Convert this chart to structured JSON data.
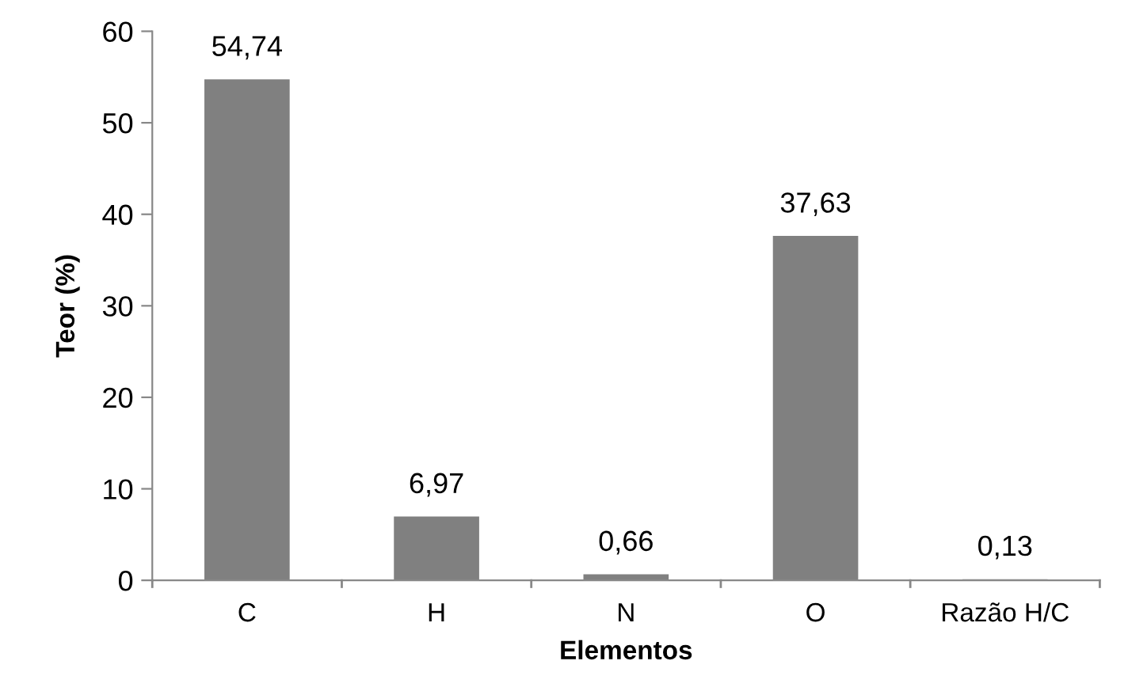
{
  "chart_data": {
    "type": "bar",
    "xlabel": "Elementos",
    "ylabel": "Teor (%)",
    "categories": [
      "C",
      "H",
      "N",
      "O",
      "Razão H/C"
    ],
    "values": [
      54.74,
      6.97,
      0.66,
      37.63,
      0.13
    ],
    "value_labels": [
      "54,74",
      "6,97",
      "0,66",
      "37,63",
      "0,13"
    ],
    "color": "#808080",
    "ylim": [
      0,
      60
    ],
    "yticks": [
      0,
      10,
      20,
      30,
      40,
      50,
      60
    ],
    "grid": false,
    "legend": false
  }
}
